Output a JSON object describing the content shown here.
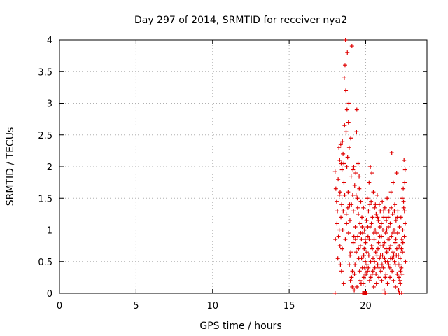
{
  "chart_data": {
    "type": "scatter",
    "title": "Day 297 of 2014, SRMTID for receiver nya2",
    "xlabel": "GPS time / hours",
    "ylabel": "SRMTID / TECUs",
    "xlim": [
      0,
      24
    ],
    "ylim": [
      0,
      4
    ],
    "x_ticks": [
      0,
      5,
      10,
      15,
      20
    ],
    "y_ticks": [
      0,
      0.5,
      1,
      1.5,
      2,
      2.5,
      3,
      3.5,
      4
    ],
    "x_tick_labels": [
      "0",
      "5",
      "10",
      "15",
      "20"
    ],
    "y_tick_labels": [
      "0",
      "0.5",
      "1",
      "1.5",
      "2",
      "2.5",
      "3",
      "3.5",
      "4"
    ],
    "grid": true,
    "marker": "+",
    "color": "#e00000",
    "series": [
      {
        "points": [
          [
            18.0,
            1.92
          ],
          [
            18.05,
            1.65
          ],
          [
            18.1,
            1.45
          ],
          [
            18.15,
            1.3
          ],
          [
            18.2,
            1.8
          ],
          [
            18.22,
            0.9
          ],
          [
            18.25,
            2.3
          ],
          [
            18.28,
            1.55
          ],
          [
            18.3,
            2.1
          ],
          [
            18.32,
            0.75
          ],
          [
            18.35,
            0.45
          ],
          [
            18.38,
            1.2
          ],
          [
            18.4,
            2.05
          ],
          [
            18.42,
            0.35
          ],
          [
            18.45,
            1.95
          ],
          [
            18.48,
            2.4
          ],
          [
            18.5,
            1.0
          ],
          [
            18.52,
            2.2
          ],
          [
            18.55,
            0.15
          ],
          [
            18.58,
            1.75
          ],
          [
            18.6,
            3.4
          ],
          [
            18.62,
            2.65
          ],
          [
            18.65,
            3.6
          ],
          [
            18.68,
            4.0
          ],
          [
            18.7,
            3.2
          ],
          [
            18.72,
            2.55
          ],
          [
            18.75,
            1.1
          ],
          [
            18.78,
            2.9
          ],
          [
            18.8,
            3.8
          ],
          [
            18.82,
            2.15
          ],
          [
            18.85,
            1.6
          ],
          [
            18.88,
            0.95
          ],
          [
            18.9,
            3.0
          ],
          [
            18.92,
            2.3
          ],
          [
            18.95,
            1.4
          ],
          [
            18.98,
            0.6
          ],
          [
            19.0,
            0.2
          ],
          [
            19.02,
            2.45
          ],
          [
            19.05,
            1.85
          ],
          [
            19.08,
            0.25
          ],
          [
            19.1,
            3.9
          ],
          [
            19.12,
            0.1
          ],
          [
            19.15,
            1.55
          ],
          [
            19.18,
            0.8
          ],
          [
            19.2,
            1.3
          ],
          [
            19.22,
            2.0
          ],
          [
            19.25,
            0.05
          ],
          [
            19.28,
            1.7
          ],
          [
            19.3,
            0.45
          ],
          [
            19.32,
            1.05
          ],
          [
            19.35,
            1.9
          ],
          [
            19.38,
            0.65
          ],
          [
            19.4,
            2.55
          ],
          [
            19.42,
            2.9
          ],
          [
            19.45,
            1.5
          ],
          [
            19.48,
            0.9
          ],
          [
            19.5,
            2.05
          ],
          [
            19.52,
            1.25
          ],
          [
            19.55,
            0.55
          ],
          [
            19.58,
            1.65
          ],
          [
            19.6,
            0.35
          ],
          [
            19.62,
            1.1
          ],
          [
            19.65,
            0.75
          ],
          [
            19.68,
            1.45
          ],
          [
            19.7,
            0.15
          ],
          [
            19.72,
            0.85
          ],
          [
            19.75,
            1.2
          ],
          [
            19.78,
            0.4
          ],
          [
            19.8,
            0.95
          ],
          [
            19.82,
            0.6
          ],
          [
            19.85,
            1.35
          ],
          [
            19.88,
            0.25
          ],
          [
            19.9,
            0.7
          ],
          [
            19.92,
            1.0
          ],
          [
            19.95,
            0.3
          ],
          [
            19.98,
            0.5
          ],
          [
            20.0,
            0.8
          ],
          [
            20.05,
            1.15
          ],
          [
            20.08,
            0.45
          ],
          [
            20.1,
            1.5
          ],
          [
            20.12,
            0.35
          ],
          [
            20.15,
            0.9
          ],
          [
            20.18,
            1.3
          ],
          [
            20.2,
            0.6
          ],
          [
            20.22,
            1.75
          ],
          [
            20.25,
            0.2
          ],
          [
            20.28,
            1.05
          ],
          [
            20.3,
            2.0
          ],
          [
            20.32,
            0.5
          ],
          [
            20.35,
            1.45
          ],
          [
            20.38,
            0.75
          ],
          [
            20.4,
            1.9
          ],
          [
            20.42,
            0.3
          ],
          [
            20.45,
            1.2
          ],
          [
            20.48,
            0.55
          ],
          [
            20.5,
            1.6
          ],
          [
            20.52,
            0.1
          ],
          [
            20.55,
            0.85
          ],
          [
            20.58,
            1.35
          ],
          [
            20.6,
            0.4
          ],
          [
            20.62,
            1.0
          ],
          [
            20.65,
            0.65
          ],
          [
            20.68,
            1.25
          ],
          [
            20.7,
            0.15
          ],
          [
            20.72,
            0.95
          ],
          [
            20.75,
            1.55
          ],
          [
            20.78,
            0.45
          ],
          [
            20.8,
            0.7
          ],
          [
            20.82,
            1.15
          ],
          [
            20.85,
            0.25
          ],
          [
            20.88,
            1.4
          ],
          [
            20.9,
            0.55
          ],
          [
            20.92,
            0.9
          ],
          [
            20.95,
            1.3
          ],
          [
            20.98,
            0.35
          ],
          [
            21.0,
            0.75
          ],
          [
            21.02,
            1.1
          ],
          [
            21.05,
            0.2
          ],
          [
            21.08,
            1.45
          ],
          [
            21.1,
            0.6
          ],
          [
            21.12,
            1.0
          ],
          [
            21.15,
            0.4
          ],
          [
            21.18,
            1.2
          ],
          [
            21.2,
            0.05
          ],
          [
            21.22,
            0.8
          ],
          [
            21.25,
            1.35
          ],
          [
            21.28,
            0.5
          ],
          [
            21.3,
            0.95
          ],
          [
            21.32,
            0.3
          ],
          [
            21.35,
            1.15
          ],
          [
            21.38,
            0.65
          ],
          [
            21.4,
            1.5
          ],
          [
            21.42,
            0.15
          ],
          [
            21.45,
            0.85
          ],
          [
            21.48,
            1.05
          ],
          [
            21.5,
            0.45
          ],
          [
            21.52,
            1.3
          ],
          [
            21.55,
            0.7
          ],
          [
            21.58,
            0.25
          ],
          [
            21.6,
            1.1
          ],
          [
            21.62,
            0.55
          ],
          [
            21.65,
            1.6
          ],
          [
            21.68,
            0.9
          ],
          [
            21.7,
            2.22
          ],
          [
            21.72,
            0.35
          ],
          [
            21.75,
            1.25
          ],
          [
            21.78,
            0.65
          ],
          [
            21.8,
            1.75
          ],
          [
            21.82,
            0.2
          ],
          [
            21.85,
            1.0
          ],
          [
            21.88,
            0.5
          ],
          [
            21.9,
            1.4
          ],
          [
            21.92,
            0.8
          ],
          [
            21.95,
            0.1
          ],
          [
            21.98,
            1.15
          ],
          [
            22.0,
            0.6
          ],
          [
            22.02,
            1.9
          ],
          [
            22.05,
            0.3
          ],
          [
            22.08,
            0.95
          ],
          [
            22.1,
            1.3
          ],
          [
            22.12,
            0.45
          ],
          [
            22.15,
            0.05
          ],
          [
            22.18,
            0.75
          ],
          [
            22.2,
            1.05
          ],
          [
            22.22,
            0.2
          ],
          [
            22.25,
            0.55
          ],
          [
            22.28,
            0.35
          ],
          [
            22.3,
            1.2
          ],
          [
            22.32,
            0.4
          ],
          [
            22.35,
            0.85
          ],
          [
            22.38,
            1.5
          ],
          [
            22.4,
            0.65
          ],
          [
            22.42,
            1.0
          ],
          [
            22.45,
            1.65
          ],
          [
            22.48,
            1.35
          ],
          [
            22.5,
            2.1
          ],
          [
            22.52,
            0.9
          ],
          [
            22.55,
            1.75
          ],
          [
            22.58,
            1.1
          ],
          [
            22.6,
            0.5
          ],
          [
            18.02,
            0.85
          ],
          [
            18.12,
            1.1
          ],
          [
            18.18,
            0.55
          ],
          [
            18.27,
            1.0
          ],
          [
            18.33,
            1.6
          ],
          [
            18.37,
            2.35
          ],
          [
            18.43,
            1.4
          ],
          [
            18.47,
            0.7
          ],
          [
            18.53,
            1.3
          ],
          [
            18.57,
            2.05
          ],
          [
            18.63,
            1.55
          ],
          [
            18.67,
            0.85
          ],
          [
            18.73,
            1.25
          ],
          [
            18.77,
            2.0
          ],
          [
            18.83,
            1.35
          ],
          [
            18.87,
            2.7
          ],
          [
            18.93,
            0.45
          ],
          [
            18.97,
            1.15
          ],
          [
            19.03,
            0.65
          ],
          [
            19.07,
            1.4
          ],
          [
            19.13,
            0.35
          ],
          [
            19.17,
            1.95
          ],
          [
            19.23,
            0.9
          ],
          [
            19.27,
            0.3
          ],
          [
            19.33,
            0.85
          ],
          [
            19.37,
            1.55
          ],
          [
            19.43,
            0.1
          ],
          [
            19.47,
            1.35
          ],
          [
            19.53,
            0.7
          ],
          [
            19.57,
            1.85
          ],
          [
            19.63,
            0.2
          ],
          [
            19.67,
            0.95
          ],
          [
            19.73,
            0.55
          ],
          [
            19.77,
            1.05
          ],
          [
            19.83,
            0.15
          ],
          [
            19.87,
            0.6
          ],
          [
            19.93,
            0.4
          ],
          [
            19.97,
            0.85
          ],
          [
            20.03,
            0.3
          ],
          [
            20.07,
            0.65
          ],
          [
            20.13,
            1.05
          ],
          [
            20.17,
            0.4
          ],
          [
            20.23,
            0.85
          ],
          [
            20.27,
            1.4
          ],
          [
            20.33,
            0.25
          ],
          [
            20.37,
            1.1
          ],
          [
            20.43,
            0.7
          ],
          [
            20.47,
            0.35
          ],
          [
            20.53,
            0.95
          ],
          [
            20.57,
            0.5
          ],
          [
            20.63,
            1.4
          ],
          [
            20.67,
            0.3
          ],
          [
            20.73,
            0.6
          ],
          [
            20.77,
            1.2
          ],
          [
            20.83,
            0.8
          ],
          [
            20.87,
            0.4
          ],
          [
            20.93,
            1.05
          ],
          [
            20.97,
            0.6
          ],
          [
            21.03,
            0.9
          ],
          [
            21.07,
            0.45
          ],
          [
            21.13,
            0.75
          ],
          [
            21.17,
            1.3
          ],
          [
            21.23,
            0.55
          ],
          [
            21.27,
            0.25
          ],
          [
            21.33,
            0.7
          ],
          [
            21.37,
            1.0
          ],
          [
            21.43,
            0.5
          ],
          [
            21.47,
            1.2
          ],
          [
            21.53,
            0.85
          ],
          [
            21.57,
            0.4
          ],
          [
            21.63,
            0.75
          ],
          [
            21.67,
            1.35
          ],
          [
            21.73,
            0.55
          ],
          [
            21.77,
            0.95
          ],
          [
            21.83,
            0.6
          ],
          [
            21.87,
            1.3
          ],
          [
            21.93,
            0.45
          ],
          [
            21.97,
            0.85
          ],
          [
            22.03,
            0.7
          ],
          [
            22.07,
            1.2
          ],
          [
            22.13,
            0.6
          ],
          [
            22.17,
            0.25
          ],
          [
            22.23,
            0.45
          ],
          [
            22.27,
            0.15
          ],
          [
            22.33,
            0.7
          ],
          [
            22.37,
            0.3
          ],
          [
            22.43,
            0.8
          ],
          [
            22.47,
            1.45
          ],
          [
            22.53,
            1.3
          ],
          [
            22.57,
            1.95
          ],
          [
            18.0,
            0.0
          ],
          [
            19.8,
            0.0
          ],
          [
            19.85,
            0.0
          ],
          [
            19.9,
            0.0
          ],
          [
            19.95,
            0.0
          ],
          [
            20.0,
            0.0
          ],
          [
            20.05,
            0.0
          ],
          [
            21.2,
            0.0
          ],
          [
            21.3,
            0.0
          ],
          [
            22.2,
            0.0
          ],
          [
            22.35,
            0.0
          ]
        ]
      }
    ]
  }
}
